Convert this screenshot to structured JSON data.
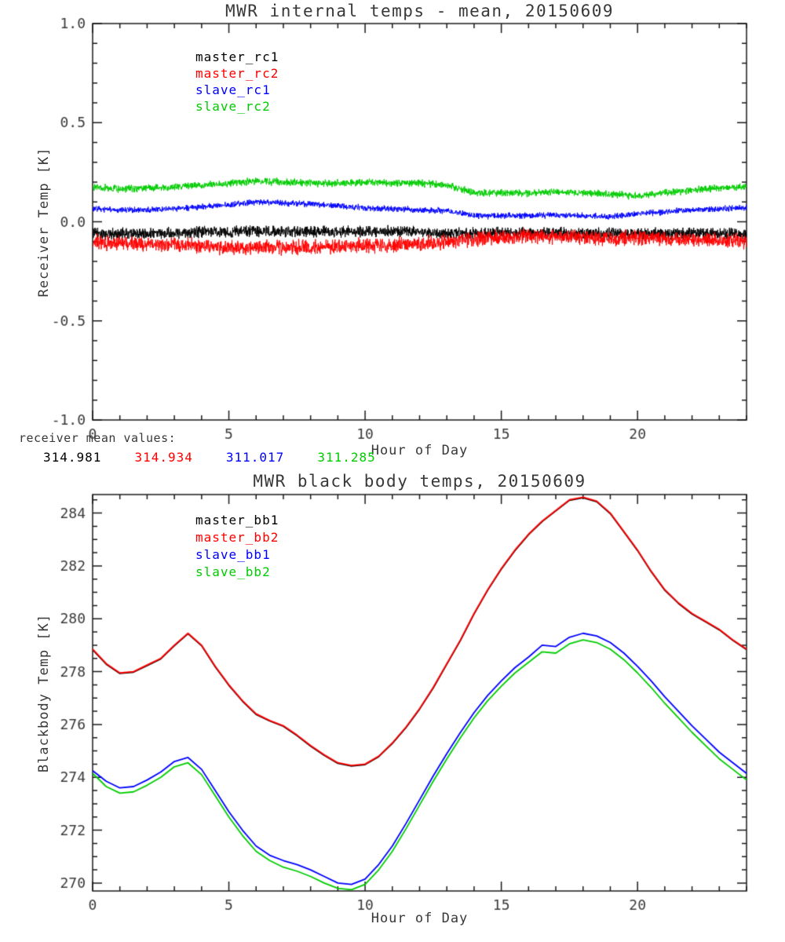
{
  "page": {
    "bg": "#ffffff",
    "text_color": "#383838",
    "axis_color": "#1a1a1a"
  },
  "means": {
    "label": "receiver mean values:",
    "values": [
      {
        "text": "314.981",
        "color": "#000000"
      },
      {
        "text": "314.934",
        "color": "#ff0000"
      },
      {
        "text": "311.017",
        "color": "#0000ff"
      },
      {
        "text": "311.285",
        "color": "#00cc00"
      }
    ]
  },
  "chart_data": [
    {
      "type": "line",
      "title": "MWR internal temps - mean, 20150609",
      "xlabel": "Hour of Day",
      "ylabel": "Receiver Temp [K]",
      "xlim": [
        0,
        24
      ],
      "ylim": [
        -1.0,
        1.0
      ],
      "xticks": [
        0,
        5,
        10,
        15,
        20
      ],
      "xtick_labels": [
        "0",
        "5",
        "10",
        "15",
        "20"
      ],
      "yticks": [
        -1.0,
        -0.5,
        0.0,
        0.5,
        1.0
      ],
      "ytick_labels": [
        "-1.0",
        "-0.5",
        "0.0",
        "0.5",
        "1.0"
      ],
      "x_minor": 1,
      "y_minor": 0.1,
      "grid": false,
      "legend_position": "upper-left-inside",
      "draw_order": [
        0,
        1,
        2,
        3
      ],
      "x": [
        0,
        1,
        2,
        3,
        4,
        5,
        6,
        7,
        8,
        9,
        10,
        11,
        12,
        13,
        14,
        15,
        16,
        17,
        18,
        19,
        20,
        21,
        22,
        23,
        24
      ],
      "series": [
        {
          "name": "master_rc1",
          "color": "#000000",
          "noise": 0.035,
          "values": [
            -0.06,
            -0.06,
            -0.06,
            -0.055,
            -0.05,
            -0.05,
            -0.05,
            -0.05,
            -0.05,
            -0.05,
            -0.05,
            -0.05,
            -0.05,
            -0.06,
            -0.06,
            -0.055,
            -0.055,
            -0.055,
            -0.06,
            -0.06,
            -0.06,
            -0.06,
            -0.06,
            -0.06,
            -0.06
          ]
        },
        {
          "name": "master_rc2",
          "color": "#ff0000",
          "noise": 0.045,
          "values": [
            -0.1,
            -0.11,
            -0.11,
            -0.115,
            -0.12,
            -0.13,
            -0.13,
            -0.13,
            -0.13,
            -0.125,
            -0.12,
            -0.115,
            -0.11,
            -0.1,
            -0.085,
            -0.08,
            -0.075,
            -0.075,
            -0.08,
            -0.085,
            -0.08,
            -0.085,
            -0.09,
            -0.095,
            -0.1
          ]
        },
        {
          "name": "slave_rc1",
          "color": "#0000ff",
          "noise": 0.018,
          "values": [
            0.065,
            0.06,
            0.06,
            0.065,
            0.075,
            0.085,
            0.1,
            0.095,
            0.09,
            0.08,
            0.07,
            0.065,
            0.06,
            0.055,
            0.03,
            0.03,
            0.03,
            0.035,
            0.03,
            0.025,
            0.04,
            0.05,
            0.06,
            0.065,
            0.07
          ]
        },
        {
          "name": "slave_rc2",
          "color": "#00cc00",
          "noise": 0.022,
          "values": [
            0.175,
            0.165,
            0.17,
            0.175,
            0.185,
            0.195,
            0.205,
            0.2,
            0.195,
            0.195,
            0.2,
            0.195,
            0.195,
            0.185,
            0.145,
            0.145,
            0.145,
            0.15,
            0.145,
            0.14,
            0.13,
            0.145,
            0.16,
            0.17,
            0.175
          ]
        }
      ]
    },
    {
      "type": "line",
      "title": "MWR black body temps, 20150609",
      "xlabel": "Hour of Day",
      "ylabel": "Blackbody Temp [K]",
      "xlim": [
        0,
        24
      ],
      "ylim": [
        269.7,
        284.7
      ],
      "xticks": [
        0,
        5,
        10,
        15,
        20
      ],
      "xtick_labels": [
        "0",
        "5",
        "10",
        "15",
        "20"
      ],
      "yticks": [
        270,
        272,
        274,
        276,
        278,
        280,
        282,
        284
      ],
      "ytick_labels": [
        "270",
        "272",
        "274",
        "276",
        "278",
        "280",
        "282",
        "284"
      ],
      "x_minor": 1,
      "y_minor": 0.5,
      "grid": false,
      "legend_position": "upper-left-inside",
      "draw_order": [
        0,
        3,
        2,
        1
      ],
      "x": [
        0,
        0.5,
        1,
        1.5,
        2,
        2.5,
        3,
        3.5,
        4,
        4.5,
        5,
        5.5,
        6,
        6.5,
        7,
        7.5,
        8,
        8.5,
        9,
        9.5,
        10,
        10.5,
        11,
        11.5,
        12,
        12.5,
        13,
        13.5,
        14,
        14.5,
        15,
        15.5,
        16,
        16.5,
        17,
        17.5,
        18,
        18.5,
        19,
        19.5,
        20,
        20.5,
        21,
        21.5,
        22,
        22.5,
        23,
        23.5,
        24
      ],
      "series": [
        {
          "name": "master_bb1",
          "color": "#000000",
          "values": [
            278.83,
            278.28,
            277.93,
            277.98,
            278.23,
            278.48,
            278.98,
            279.43,
            278.98,
            278.18,
            277.48,
            276.88,
            276.38,
            276.13,
            275.93,
            275.58,
            275.18,
            274.83,
            274.53,
            274.43,
            274.48,
            274.78,
            275.28,
            275.88,
            276.58,
            277.38,
            278.28,
            279.18,
            280.18,
            281.08,
            281.88,
            282.58,
            283.18,
            283.68,
            284.08,
            284.48,
            284.58,
            284.43,
            283.98,
            283.28,
            282.58,
            281.78,
            281.08,
            280.58,
            280.18,
            279.88,
            279.58,
            279.18,
            278.83
          ]
        },
        {
          "name": "master_bb2",
          "color": "#ff0000",
          "values": [
            278.85,
            278.3,
            277.95,
            278.0,
            278.25,
            278.5,
            279.0,
            279.45,
            279.0,
            278.2,
            277.5,
            276.9,
            276.4,
            276.15,
            275.95,
            275.6,
            275.2,
            274.85,
            274.55,
            274.45,
            274.5,
            274.8,
            275.3,
            275.9,
            276.6,
            277.4,
            278.3,
            279.2,
            280.2,
            281.1,
            281.9,
            282.6,
            283.2,
            283.7,
            284.1,
            284.5,
            284.6,
            284.45,
            284.0,
            283.3,
            282.6,
            281.8,
            281.1,
            280.6,
            280.2,
            279.9,
            279.6,
            279.2,
            278.85
          ]
        },
        {
          "name": "slave_bb1",
          "color": "#0000ff",
          "values": [
            274.25,
            273.85,
            273.6,
            273.65,
            273.9,
            274.2,
            274.6,
            274.75,
            274.3,
            273.5,
            272.7,
            272.0,
            271.4,
            271.05,
            270.85,
            270.7,
            270.5,
            270.25,
            270.0,
            269.95,
            270.15,
            270.7,
            271.4,
            272.25,
            273.15,
            274.05,
            274.9,
            275.7,
            276.45,
            277.1,
            277.65,
            278.15,
            278.55,
            279.0,
            278.95,
            279.3,
            279.45,
            279.35,
            279.1,
            278.7,
            278.2,
            277.65,
            277.05,
            276.5,
            275.95,
            275.45,
            274.95,
            274.55,
            274.15
          ]
        },
        {
          "name": "slave_bb2",
          "color": "#00cc00",
          "values": [
            274.15,
            273.65,
            273.4,
            273.45,
            273.7,
            274.0,
            274.4,
            274.55,
            274.1,
            273.3,
            272.5,
            271.8,
            271.2,
            270.85,
            270.6,
            270.45,
            270.25,
            270.0,
            269.8,
            269.75,
            269.95,
            270.5,
            271.2,
            272.05,
            272.95,
            273.85,
            274.7,
            275.5,
            276.25,
            276.9,
            277.45,
            277.95,
            278.35,
            278.75,
            278.7,
            279.05,
            279.2,
            279.1,
            278.85,
            278.45,
            277.95,
            277.4,
            276.8,
            276.25,
            275.7,
            275.2,
            274.7,
            274.3,
            273.9
          ]
        }
      ]
    }
  ]
}
